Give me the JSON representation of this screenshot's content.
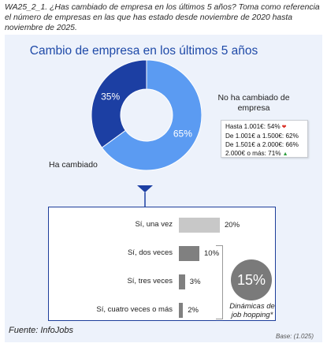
{
  "question": "WA25_2_1. ¿Has cambiado de empresa en los últimos 5 años? Toma como referencia el número de empresas en las que has estado desde noviembre de 2020 hasta noviembre de 2025.",
  "chart_data": [
    {
      "type": "pie",
      "title": "Cambio de empresa en los últimos 5 años",
      "slices": [
        {
          "label": "No ha cambiado de empresa",
          "value": 65,
          "value_label": "65%",
          "color": "#5b9bf2"
        },
        {
          "label": "Ha cambiado",
          "value": 35,
          "value_label": "35%",
          "color": "#1c3fa3"
        }
      ],
      "label_no_cambiado": "No ha cambiado de empresa",
      "label_ha_cambiado": "Ha cambiado",
      "tooltip": [
        {
          "text": "Hasta 1.001€: 54%",
          "trend": "down"
        },
        {
          "text": "De 1.001€ a 1.500€: 62%",
          "trend": ""
        },
        {
          "text": "De 1.501€ a 2.000€: 66%",
          "trend": ""
        },
        {
          "text": "2.000€ o más: 71%",
          "trend": "up"
        }
      ]
    },
    {
      "type": "bar",
      "orientation": "horizontal",
      "categories": [
        "Sí, una vez",
        "Sí, dos veces",
        "Sí, tres veces",
        "Sí, cuatro veces o más"
      ],
      "values": [
        20,
        10,
        3,
        2
      ],
      "value_labels": [
        "20%",
        "10%",
        "3%",
        "2%"
      ],
      "colors": [
        "#c8c8c8",
        "#808080",
        "#808080",
        "#808080"
      ],
      "annotation_value": "15%",
      "annotation_caption": "Dinámicas de job hopping*"
    }
  ],
  "colors": {
    "accent": "#1f4aa8",
    "donut_light": "#5b9bf2",
    "donut_dark": "#1c3fa3",
    "panel_bg": "#edf2fb",
    "box_border": "#1d3e9a"
  },
  "source": "Fuente: InfoJobs",
  "base": "Base:   (1.025)",
  "icons": {
    "down": "red-down-arrow-icon",
    "up": "green-up-arrow-icon"
  }
}
